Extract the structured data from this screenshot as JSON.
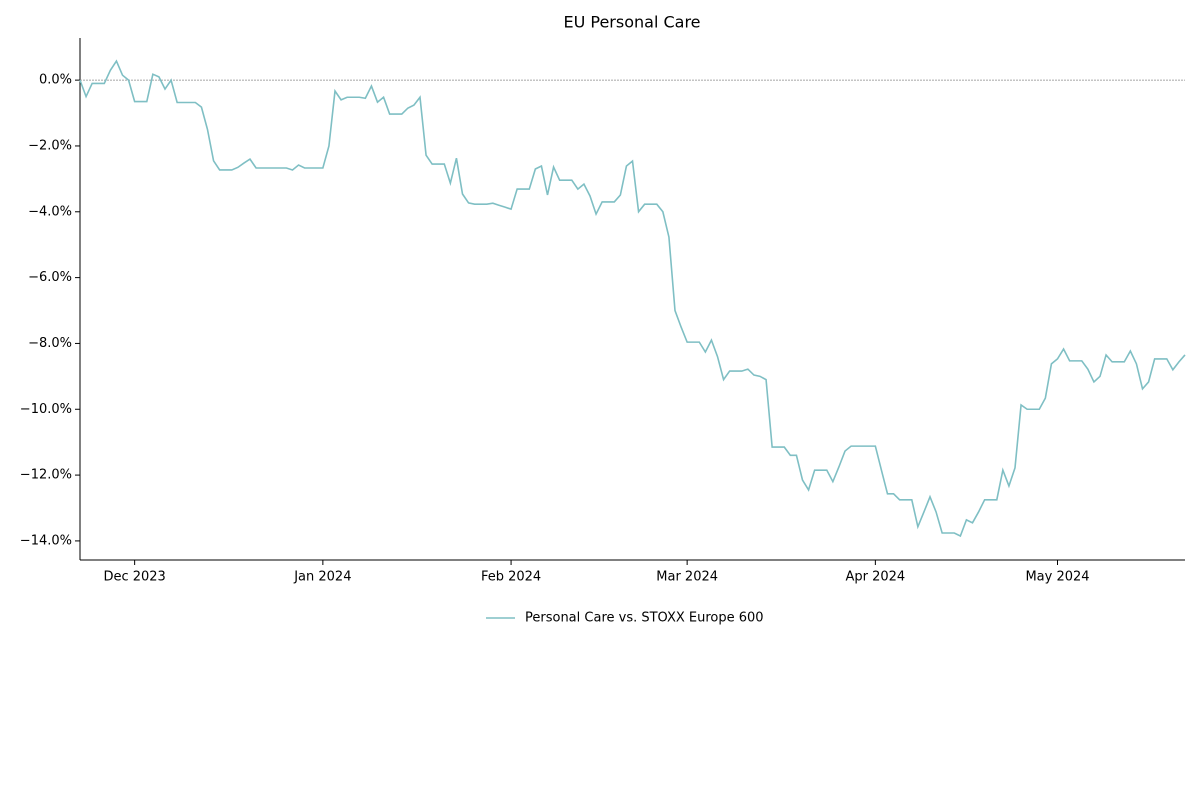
{
  "chart_data": {
    "type": "line",
    "title": "EU Personal Care",
    "categories": [
      null,
      null,
      null,
      null,
      null,
      null,
      null,
      null,
      null,
      "Dec 2023",
      null,
      null,
      null,
      null,
      null,
      null,
      null,
      null,
      null,
      null,
      null,
      null,
      null,
      null,
      null,
      null,
      null,
      null,
      null,
      null,
      null,
      null,
      null,
      null,
      null,
      null,
      null,
      null,
      null,
      null,
      "Jan 2024",
      null,
      null,
      null,
      null,
      null,
      null,
      null,
      null,
      null,
      null,
      null,
      null,
      null,
      null,
      null,
      null,
      null,
      null,
      null,
      null,
      null,
      null,
      null,
      null,
      null,
      null,
      null,
      null,
      null,
      null,
      "Feb 2024",
      null,
      null,
      null,
      null,
      null,
      null,
      null,
      null,
      null,
      null,
      null,
      null,
      null,
      null,
      null,
      null,
      null,
      null,
      null,
      null,
      null,
      null,
      null,
      null,
      null,
      null,
      null,
      null,
      "Mar 2024",
      null,
      null,
      null,
      null,
      null,
      null,
      null,
      null,
      null,
      null,
      null,
      null,
      null,
      null,
      null,
      null,
      null,
      null,
      null,
      null,
      null,
      null,
      null,
      null,
      null,
      null,
      null,
      null,
      null,
      null,
      "Apr 2024",
      null,
      null,
      null,
      null,
      null,
      null,
      null,
      null,
      null,
      null,
      null,
      null,
      null,
      null,
      null,
      null,
      null,
      null,
      null,
      null,
      null,
      null,
      null,
      null,
      null,
      null,
      null,
      null,
      null,
      "May 2024",
      null,
      null,
      null,
      null,
      null,
      null,
      null,
      null,
      null,
      null,
      null,
      null,
      null,
      null,
      null,
      null,
      null,
      null,
      null,
      null,
      null
    ],
    "series": [
      {
        "name": "Personal Care vs. STOXX Europe 600",
        "color": "#7fbfc4",
        "values": [
          0,
          -0.5,
          -0.1,
          -0.1,
          -0.1,
          0.3,
          0.58,
          0.15,
          0,
          -0.65,
          -0.65,
          -0.65,
          0.18,
          0.1,
          -0.27,
          0,
          -0.68,
          -0.68,
          -0.68,
          -0.68,
          -0.82,
          -1.5,
          -2.45,
          -2.73,
          -2.73,
          -2.73,
          -2.65,
          -2.52,
          -2.4,
          -2.67,
          -2.67,
          -2.67,
          -2.67,
          -2.67,
          -2.67,
          -2.73,
          -2.58,
          -2.67,
          -2.67,
          -2.67,
          -2.67,
          -2.0,
          -0.33,
          -0.6,
          -0.52,
          -0.52,
          -0.52,
          -0.55,
          -0.18,
          -0.67,
          -0.52,
          -1.03,
          -1.03,
          -1.03,
          -0.85,
          -0.76,
          -0.52,
          -2.28,
          -2.55,
          -2.55,
          -2.55,
          -3.13,
          -2.37,
          -3.46,
          -3.73,
          -3.77,
          -3.77,
          -3.77,
          -3.74,
          -3.8,
          -3.86,
          -3.92,
          -3.31,
          -3.31,
          -3.31,
          -2.7,
          -2.61,
          -3.49,
          -2.64,
          -3.04,
          -3.04,
          -3.04,
          -3.31,
          -3.16,
          -3.52,
          -4.07,
          -3.7,
          -3.7,
          -3.7,
          -3.49,
          -2.61,
          -2.46,
          -4.0,
          -3.77,
          -3.77,
          -3.77,
          -4.0,
          -4.77,
          -7.0,
          -7.5,
          -7.96,
          -7.96,
          -7.96,
          -8.26,
          -7.9,
          -8.4,
          -9.1,
          -8.84,
          -8.84,
          -8.84,
          -8.78,
          -8.96,
          -9.0,
          -9.1,
          -11.15,
          -11.15,
          -11.15,
          -11.4,
          -11.4,
          -12.15,
          -12.45,
          -11.85,
          -11.85,
          -11.85,
          -12.2,
          -11.75,
          -11.27,
          -11.12,
          -11.12,
          -11.12,
          -11.12,
          -11.12,
          -11.85,
          -12.57,
          -12.57,
          -12.75,
          -12.75,
          -12.75,
          -13.57,
          -13.12,
          -12.66,
          -13.12,
          -13.76,
          -13.76,
          -13.76,
          -13.85,
          -13.36,
          -13.45,
          -13.12,
          -12.75,
          -12.75,
          -12.75,
          -11.85,
          -12.33,
          -11.78,
          -9.87,
          -10.0,
          -10.0,
          -10.0,
          -9.66,
          -8.62,
          -8.47,
          -8.17,
          -8.53,
          -8.53,
          -8.53,
          -8.78,
          -9.17,
          -9.0,
          -8.35,
          -8.56,
          -8.56,
          -8.56,
          -8.23,
          -8.62,
          -9.38,
          -9.17,
          -8.47,
          -8.47,
          -8.47,
          -8.8,
          -8.56,
          -8.35
        ]
      }
    ],
    "ylim": [
      -14.58,
      1.28
    ],
    "yticks": [
      {
        "value": 0,
        "label": "0.0%"
      },
      {
        "value": -2,
        "label": "−2.0%"
      },
      {
        "value": -4,
        "label": "−4.0%"
      },
      {
        "value": -6,
        "label": "−6.0%"
      },
      {
        "value": -8,
        "label": "−8.0%"
      },
      {
        "value": -10,
        "label": "−10.0%"
      },
      {
        "value": -12,
        "label": "−12.0%"
      },
      {
        "value": -14,
        "label": "−14.0%"
      }
    ],
    "reference_line": 0,
    "legend": "bottom"
  }
}
